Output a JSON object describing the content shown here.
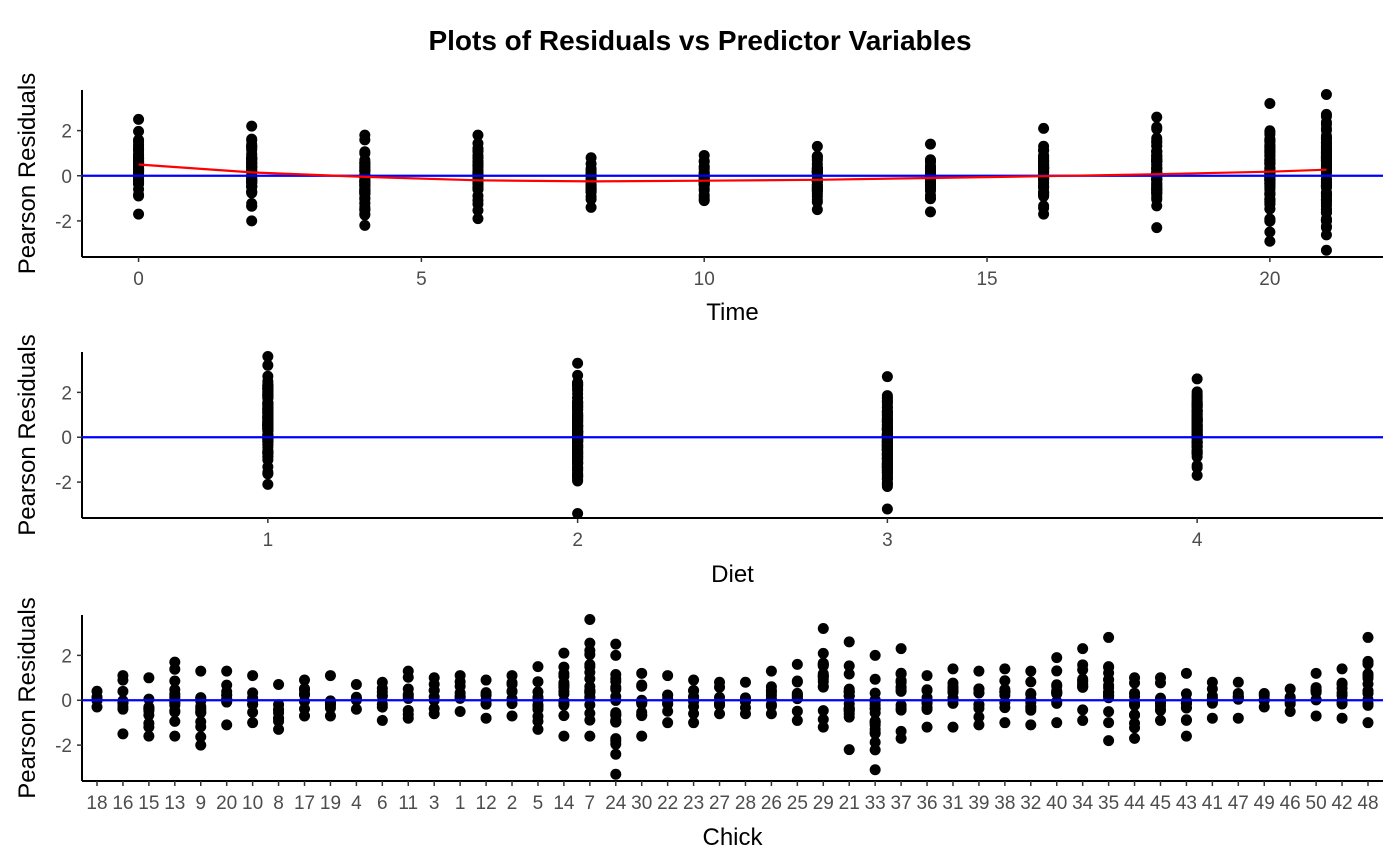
{
  "chart_data": {
    "title": "Plots of Residuals vs Predictor Variables",
    "colors": {
      "points": "#000000",
      "hline": "#0000ff",
      "smooth": "#ff0000"
    },
    "panels": [
      {
        "type": "scatter",
        "xlabel": "Time",
        "ylabel": "Pearson Residuals",
        "xlim": [
          -1,
          22
        ],
        "ylim": [
          -3.6,
          3.8
        ],
        "xticks": [
          0,
          5,
          10,
          15,
          20
        ],
        "yticks": [
          -2,
          0,
          2
        ],
        "hline": 0,
        "points": [
          {
            "x": 0,
            "min": -1.7,
            "max": 2.5
          },
          {
            "x": 2,
            "min": -2.0,
            "max": 2.2
          },
          {
            "x": 4,
            "min": -2.2,
            "max": 1.8
          },
          {
            "x": 6,
            "min": -1.9,
            "max": 1.8
          },
          {
            "x": 8,
            "min": -1.4,
            "max": 0.8
          },
          {
            "x": 10,
            "min": -1.1,
            "max": 0.9
          },
          {
            "x": 12,
            "min": -1.5,
            "max": 1.3
          },
          {
            "x": 14,
            "min": -1.6,
            "max": 1.4
          },
          {
            "x": 16,
            "min": -1.7,
            "max": 2.1
          },
          {
            "x": 18,
            "min": -2.3,
            "max": 2.6
          },
          {
            "x": 20,
            "min": -2.9,
            "max": 3.2
          },
          {
            "x": 21,
            "min": -3.3,
            "max": 3.6
          }
        ],
        "smooth": [
          [
            0,
            0.5
          ],
          [
            2,
            0.15
          ],
          [
            4,
            -0.05
          ],
          [
            6,
            -0.2
          ],
          [
            8,
            -0.25
          ],
          [
            10,
            -0.22
          ],
          [
            12,
            -0.18
          ],
          [
            14,
            -0.1
          ],
          [
            16,
            -0.02
          ],
          [
            18,
            0.07
          ],
          [
            20,
            0.18
          ],
          [
            21,
            0.27
          ]
        ]
      },
      {
        "type": "scatter",
        "xlabel": "Diet",
        "ylabel": "Pearson Residuals",
        "xlim": [
          0.4,
          4.6
        ],
        "ylim": [
          -3.6,
          3.8
        ],
        "categories": [
          "1",
          "2",
          "3",
          "4"
        ],
        "yticks": [
          -2,
          0,
          2
        ],
        "hline": 0,
        "points": [
          {
            "x": 1,
            "min": -2.1,
            "max": 3.6
          },
          {
            "x": 2,
            "min": -3.4,
            "max": 3.3
          },
          {
            "x": 3,
            "min": -3.2,
            "max": 2.7
          },
          {
            "x": 4,
            "min": -1.7,
            "max": 2.6
          }
        ]
      },
      {
        "type": "scatter",
        "xlabel": "Chick",
        "ylabel": "Pearson Residuals",
        "ylim": [
          -3.6,
          3.8
        ],
        "yticks": [
          -2,
          0,
          2
        ],
        "hline": 0,
        "categories": [
          "18",
          "16",
          "15",
          "13",
          "9",
          "20",
          "10",
          "8",
          "17",
          "19",
          "4",
          "6",
          "11",
          "3",
          "1",
          "12",
          "2",
          "5",
          "14",
          "7",
          "24",
          "30",
          "22",
          "23",
          "27",
          "28",
          "26",
          "25",
          "29",
          "21",
          "33",
          "37",
          "36",
          "31",
          "39",
          "38",
          "32",
          "40",
          "34",
          "35",
          "44",
          "45",
          "43",
          "41",
          "47",
          "49",
          "46",
          "50",
          "42",
          "48"
        ],
        "tick_labels": [
          "18",
          "16",
          "15",
          "13",
          "9",
          "20",
          "10",
          "8",
          "17",
          "19",
          "4",
          "6",
          "11",
          "3",
          "1",
          "12",
          "2",
          "5",
          "14",
          "7",
          "24",
          "30",
          "22",
          "23",
          "27",
          "28",
          "26",
          "25",
          "29",
          "21",
          "33",
          "37",
          "36",
          "31",
          "39",
          "38",
          "32",
          "40",
          "34",
          "35",
          "44",
          "45",
          "43",
          "41",
          "47",
          "49",
          "46",
          "50",
          "42",
          "48"
        ],
        "ranges": [
          [
            -0.3,
            0.4
          ],
          [
            -1.5,
            1.1
          ],
          [
            -1.6,
            1.0
          ],
          [
            -1.6,
            1.7
          ],
          [
            -2.0,
            1.3
          ],
          [
            -1.1,
            1.3
          ],
          [
            -1.0,
            1.1
          ],
          [
            -1.3,
            0.7
          ],
          [
            -0.7,
            0.9
          ],
          [
            -0.7,
            1.1
          ],
          [
            -0.4,
            0.7
          ],
          [
            -0.9,
            0.8
          ],
          [
            -0.8,
            1.3
          ],
          [
            -0.6,
            1.0
          ],
          [
            -0.5,
            1.1
          ],
          [
            -0.8,
            0.9
          ],
          [
            -0.7,
            1.1
          ],
          [
            -1.3,
            1.5
          ],
          [
            -1.6,
            2.1
          ],
          [
            -1.6,
            3.6
          ],
          [
            -3.3,
            2.5
          ],
          [
            -1.6,
            1.2
          ],
          [
            -1.0,
            1.1
          ],
          [
            -1.0,
            0.9
          ],
          [
            -0.6,
            0.8
          ],
          [
            -0.6,
            0.8
          ],
          [
            -0.6,
            1.3
          ],
          [
            -0.9,
            1.6
          ],
          [
            -1.2,
            3.2
          ],
          [
            -2.2,
            2.6
          ],
          [
            -3.1,
            2.0
          ],
          [
            -1.7,
            2.3
          ],
          [
            -1.2,
            1.1
          ],
          [
            -1.2,
            1.4
          ],
          [
            -1.1,
            1.3
          ],
          [
            -1.0,
            1.4
          ],
          [
            -1.1,
            1.3
          ],
          [
            -1.0,
            1.9
          ],
          [
            -0.9,
            2.3
          ],
          [
            -1.8,
            2.8
          ],
          [
            -1.7,
            1.0
          ],
          [
            -0.9,
            1.0
          ],
          [
            -1.6,
            1.2
          ],
          [
            -0.8,
            0.8
          ],
          [
            -0.8,
            0.8
          ],
          [
            -0.3,
            0.3
          ],
          [
            -0.5,
            0.5
          ],
          [
            -0.7,
            1.2
          ],
          [
            -0.8,
            1.4
          ],
          [
            -1.0,
            2.8
          ]
        ]
      }
    ]
  }
}
